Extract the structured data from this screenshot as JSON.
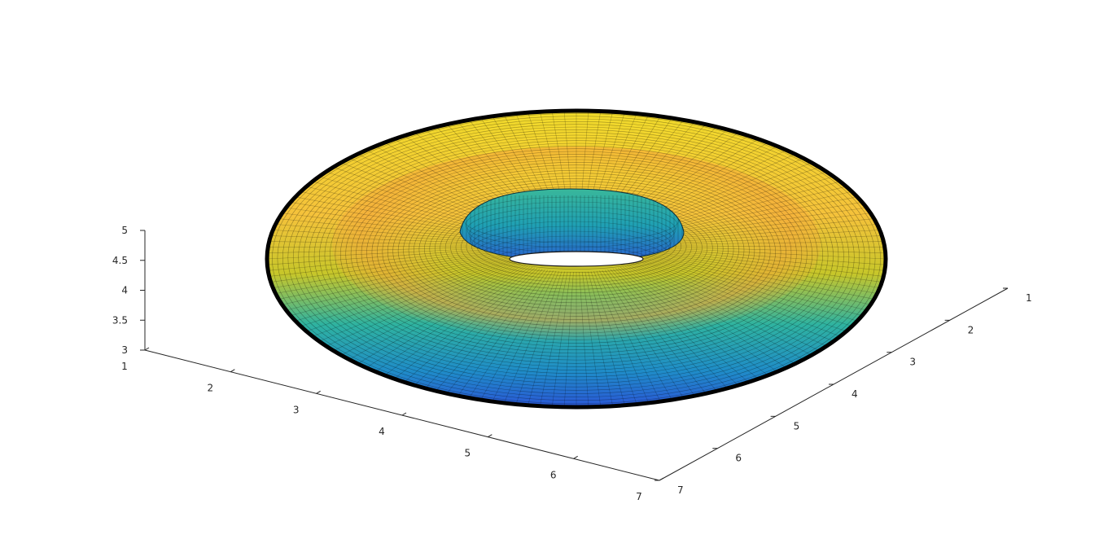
{
  "chart_data": {
    "type": "surface",
    "title": "",
    "xlabel": "",
    "ylabel": "",
    "zlabel": "",
    "grid": false,
    "colormap": "parula",
    "edge_color": "#000000",
    "x_axis": {
      "range": [
        1,
        7
      ],
      "ticks": [
        1,
        2,
        3,
        4,
        5,
        6,
        7
      ],
      "tick_labels": [
        "1",
        "2",
        "3",
        "4",
        "5",
        "6",
        "7"
      ]
    },
    "y_axis": {
      "range": [
        1,
        7
      ],
      "ticks": [
        1,
        2,
        3,
        4,
        5,
        6,
        7
      ],
      "tick_labels": [
        "1",
        "2",
        "3",
        "4",
        "5",
        "6",
        "7"
      ]
    },
    "z_axis": {
      "range": [
        3,
        5
      ],
      "ticks": [
        3,
        3.5,
        4,
        4.5,
        5
      ],
      "tick_labels": [
        "3",
        "3.5",
        "4",
        "4.5",
        "5"
      ]
    },
    "surface": {
      "shape": "torus",
      "center_x": 4,
      "center_y": 4,
      "center_z": 4,
      "major_radius": 2,
      "minor_radius": 1
    }
  }
}
